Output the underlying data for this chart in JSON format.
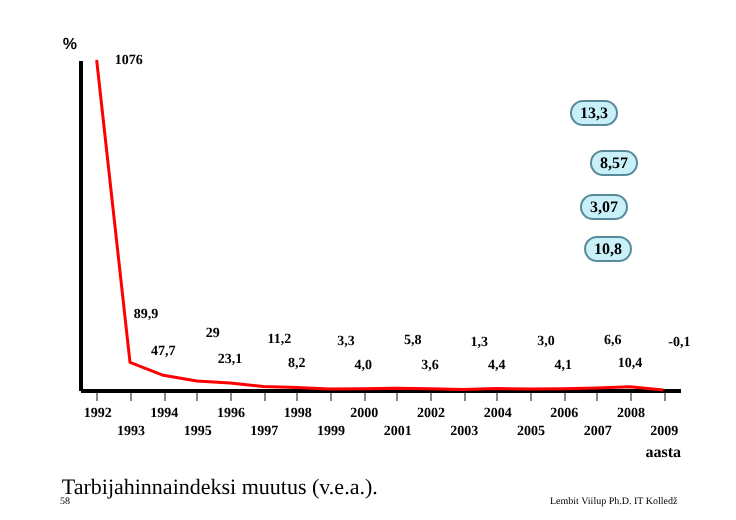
{
  "chart_data": {
    "type": "line",
    "title": "Tarbijahinnaindeksi muutus (v.e.a.).",
    "ylabel": "%",
    "xlabel": "aasta",
    "categories": [
      "1992",
      "1993",
      "1994",
      "1995",
      "1996",
      "1997",
      "1998",
      "1999",
      "2000",
      "2001",
      "2002",
      "2003",
      "2004",
      "2005",
      "2006",
      "2007",
      "2008",
      "2009"
    ],
    "series": [
      {
        "color": "#ff0000",
        "values": [
          1076,
          89.9,
          47.7,
          29,
          23.1,
          11.2,
          8.2,
          3.3,
          4.0,
          5.8,
          3.6,
          1.3,
          4.4,
          3.0,
          4.1,
          6.6,
          10.4,
          -0.1
        ],
        "value_labels": [
          "1076",
          "89,9",
          "47,7",
          "29",
          "23,1",
          "11,2",
          "8,2",
          "3,3",
          "4,0",
          "5,8",
          "3,6",
          "1,3",
          "4,4",
          "3,0",
          "4,1",
          "6,6",
          "10,4",
          "-0,1"
        ]
      }
    ],
    "annotations": [
      "13,3",
      "8,57",
      "3,07",
      "10,8",
      "58",
      "Lembit Viilup Ph.D. IT Kolledž"
    ]
  }
}
